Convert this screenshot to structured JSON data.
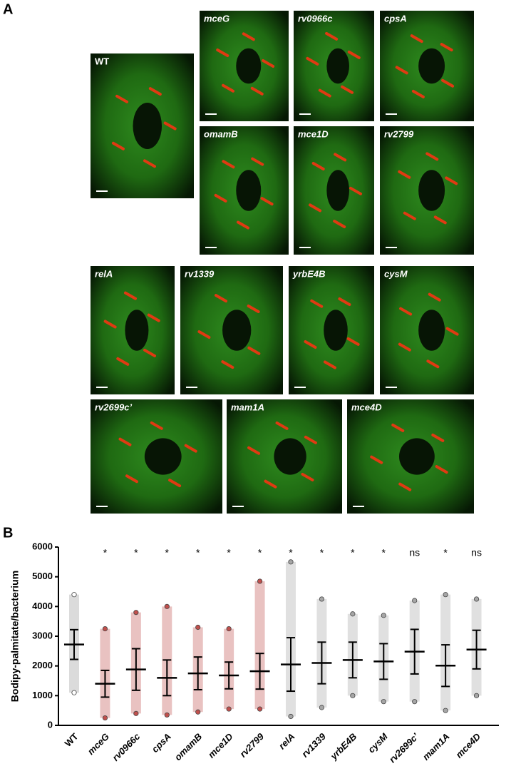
{
  "panel_labels": [
    "A",
    "B"
  ],
  "panel_a": {
    "images": [
      {
        "label": "WT"
      },
      {
        "label": "mceG"
      },
      {
        "label": "rv0966c"
      },
      {
        "label": "cpsA"
      },
      {
        "label": "omamB"
      },
      {
        "label": "mce1D"
      },
      {
        "label": "rv2799"
      },
      {
        "label": "relA"
      },
      {
        "label": "rv1339"
      },
      {
        "label": "yrbE4B"
      },
      {
        "label": "cysM"
      },
      {
        "label": "rv2699c’"
      },
      {
        "label": "mam1A"
      },
      {
        "label": "mce4D"
      }
    ]
  },
  "chart_data": {
    "type": "dotplot",
    "y_label": "Bodipy-palmitate/bacterium",
    "categories": [
      "WT",
      "mceG",
      "rv0966c",
      "cpsA",
      "omamB",
      "mce1D",
      "rv2799",
      "relA",
      "rv1339",
      "yrbE4B",
      "cysM",
      "rv2699c’",
      "mam1A",
      "mce4D"
    ],
    "values": [
      2720,
      1400,
      1880,
      1600,
      1750,
      1680,
      1820,
      2050,
      2100,
      2200,
      2150,
      2480,
      2010,
      2550
    ],
    "errors": [
      500,
      450,
      700,
      600,
      550,
      450,
      600,
      900,
      700,
      600,
      600,
      750,
      700,
      650
    ],
    "min": [
      1100,
      250,
      400,
      350,
      450,
      550,
      550,
      300,
      600,
      1000,
      800,
      800,
      500,
      1000
    ],
    "max": [
      4400,
      3250,
      3800,
      4000,
      3300,
      3250,
      4850,
      5500,
      4250,
      3750,
      3700,
      4200,
      4400,
      4250
    ],
    "point_colors": [
      "#ffffff",
      "#c0504d",
      "#c0504d",
      "#c0504d",
      "#c0504d",
      "#c0504d",
      "#c0504d",
      "#a6a6a6",
      "#a6a6a6",
      "#a6a6a6",
      "#a6a6a6",
      "#a6a6a6",
      "#a6a6a6",
      "#a6a6a6"
    ],
    "significance": [
      "*",
      "*",
      "*",
      "*",
      "*",
      "*",
      "*",
      "*",
      "*",
      "*",
      "ns",
      "*",
      "ns"
    ],
    "ylim": [
      0,
      6000
    ],
    "yticks": [
      0,
      1000,
      2000,
      3000,
      4000,
      5000,
      6000
    ]
  }
}
